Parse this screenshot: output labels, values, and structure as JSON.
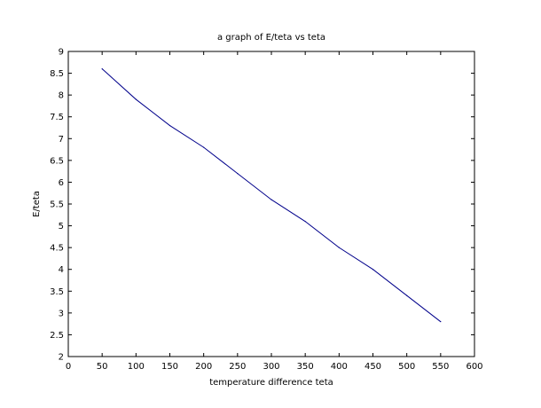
{
  "chart_data": {
    "type": "line",
    "title": "a graph of E/teta vs teta",
    "xlabel": "temperature difference teta",
    "ylabel": "E/teta",
    "xlim": [
      0,
      600
    ],
    "ylim": [
      2,
      9
    ],
    "xticks": [
      0,
      50,
      100,
      150,
      200,
      250,
      300,
      350,
      400,
      450,
      500,
      550,
      600
    ],
    "yticks": [
      2,
      2.5,
      3,
      3.5,
      4,
      4.5,
      5,
      5.5,
      6,
      6.5,
      7,
      7.5,
      8,
      8.5,
      9
    ],
    "grid": false,
    "series": [
      {
        "color": "#00008b",
        "x": [
          50,
          100,
          150,
          200,
          250,
          300,
          350,
          400,
          450,
          500,
          550
        ],
        "y": [
          8.6,
          7.9,
          7.3,
          6.8,
          6.2,
          5.6,
          5.1,
          4.5,
          4.0,
          3.4,
          2.8
        ]
      }
    ]
  }
}
